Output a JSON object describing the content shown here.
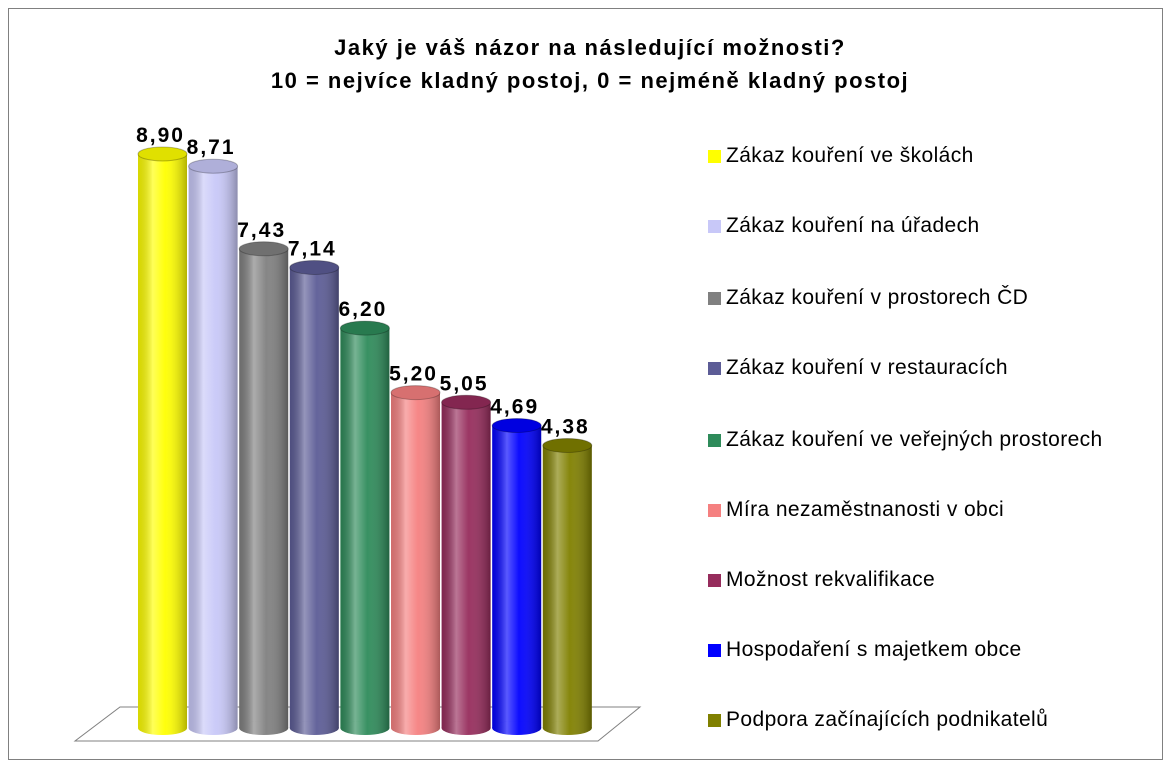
{
  "chart_data": {
    "type": "bar3d",
    "title": [
      "Jaký je váš názor na následující možnosti?",
      "10 = nejvíce kladný postoj, 0 = nejméně kladný postoj"
    ],
    "categories": [
      "Zákaz kouření ve školách",
      "Zákaz kouření na úřadech",
      "Zákaz kouření v prostorech ČD",
      "Zákaz kouření v restauracích",
      "Zákaz kouření ve veřejných prostorech",
      "Míra nezaměstnanosti v obci",
      "Možnost rekvalifikace",
      "Hospodaření s majetkem obce",
      "Podpora začínajících podnikatelů"
    ],
    "values": [
      8.9,
      8.71,
      7.43,
      7.14,
      6.2,
      5.2,
      5.05,
      4.69,
      4.38
    ],
    "value_labels": [
      "8,90",
      "8,71",
      "7,43",
      "7,14",
      "6,20",
      "5,20",
      "5,05",
      "4,69",
      "4,38"
    ],
    "colors": [
      "#ffff00",
      "#c8c8f8",
      "#808080",
      "#5c5c96",
      "#2e8b5a",
      "#f58080",
      "#962c5c",
      "#0000ff",
      "#808000"
    ],
    "legend": "right"
  }
}
